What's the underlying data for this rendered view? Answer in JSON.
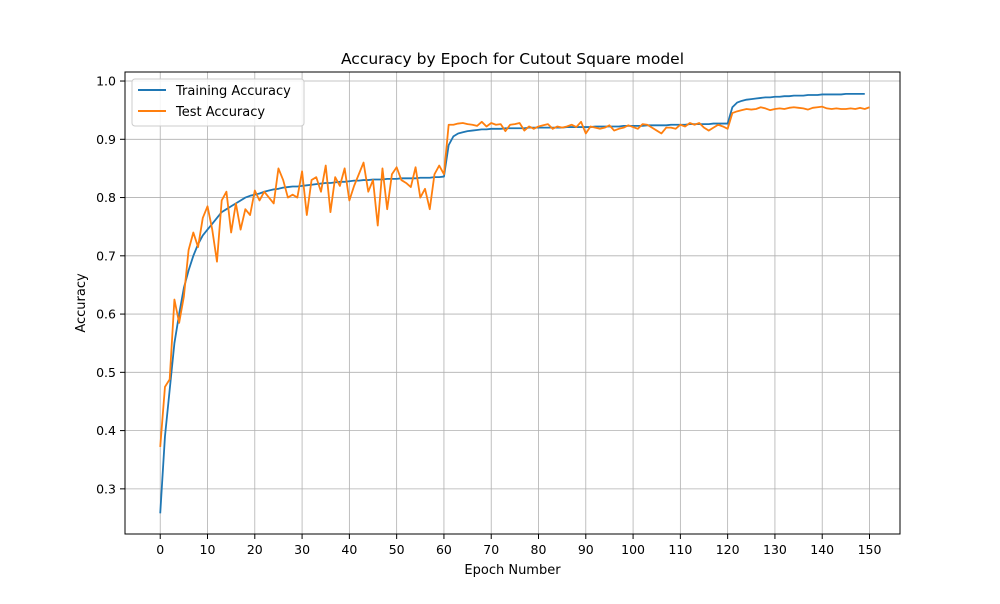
{
  "chart_data": {
    "type": "line",
    "title": "Accuracy by Epoch for Cutout Square model",
    "xlabel": "Epoch Number",
    "ylabel": "Accuracy",
    "xlim": [
      -7.45,
      156.45
    ],
    "ylim": [
      0.2225,
      1.0155
    ],
    "xticks": [
      0,
      10,
      20,
      30,
      40,
      50,
      60,
      70,
      80,
      90,
      100,
      110,
      120,
      130,
      140,
      150
    ],
    "yticks": [
      0.3,
      0.4,
      0.5,
      0.6,
      0.7,
      0.8,
      0.9,
      1.0
    ],
    "xtick_labels": [
      "0",
      "10",
      "20",
      "30",
      "40",
      "50",
      "60",
      "70",
      "80",
      "90",
      "100",
      "110",
      "120",
      "130",
      "140",
      "150"
    ],
    "ytick_labels": [
      "0.3",
      "0.4",
      "0.5",
      "0.6",
      "0.7",
      "0.8",
      "0.9",
      "1.0"
    ],
    "grid": true,
    "legend_position": "upper-left",
    "series": [
      {
        "name": "Training Accuracy",
        "color": "#1f77b4",
        "values": [
          0.258,
          0.39,
          0.47,
          0.55,
          0.6,
          0.645,
          0.675,
          0.7,
          0.72,
          0.735,
          0.745,
          0.755,
          0.765,
          0.775,
          0.78,
          0.785,
          0.79,
          0.795,
          0.8,
          0.803,
          0.805,
          0.807,
          0.81,
          0.812,
          0.814,
          0.815,
          0.817,
          0.818,
          0.819,
          0.819,
          0.82,
          0.821,
          0.822,
          0.823,
          0.824,
          0.825,
          0.825,
          0.826,
          0.827,
          0.827,
          0.828,
          0.829,
          0.829,
          0.83,
          0.83,
          0.831,
          0.831,
          0.831,
          0.832,
          0.832,
          0.832,
          0.833,
          0.833,
          0.833,
          0.833,
          0.834,
          0.834,
          0.834,
          0.835,
          0.835,
          0.836,
          0.89,
          0.905,
          0.91,
          0.912,
          0.914,
          0.915,
          0.916,
          0.917,
          0.917,
          0.918,
          0.918,
          0.918,
          0.919,
          0.919,
          0.919,
          0.919,
          0.919,
          0.92,
          0.92,
          0.92,
          0.92,
          0.92,
          0.92,
          0.92,
          0.92,
          0.921,
          0.921,
          0.921,
          0.921,
          0.921,
          0.921,
          0.922,
          0.922,
          0.922,
          0.922,
          0.922,
          0.922,
          0.923,
          0.923,
          0.923,
          0.923,
          0.923,
          0.924,
          0.924,
          0.924,
          0.924,
          0.924,
          0.925,
          0.925,
          0.925,
          0.925,
          0.926,
          0.926,
          0.926,
          0.926,
          0.926,
          0.927,
          0.927,
          0.927,
          0.927,
          0.955,
          0.963,
          0.966,
          0.968,
          0.969,
          0.97,
          0.971,
          0.972,
          0.972,
          0.973,
          0.973,
          0.974,
          0.974,
          0.975,
          0.975,
          0.975,
          0.976,
          0.976,
          0.976,
          0.977,
          0.977,
          0.977,
          0.977,
          0.977,
          0.978,
          0.978,
          0.978,
          0.978,
          0.978
        ]
      },
      {
        "name": "Test Accuracy",
        "color": "#ff7f0e",
        "values": [
          0.372,
          0.475,
          0.488,
          0.625,
          0.585,
          0.63,
          0.71,
          0.74,
          0.715,
          0.765,
          0.785,
          0.745,
          0.69,
          0.795,
          0.81,
          0.74,
          0.79,
          0.745,
          0.78,
          0.77,
          0.812,
          0.795,
          0.81,
          0.8,
          0.79,
          0.85,
          0.83,
          0.8,
          0.805,
          0.8,
          0.845,
          0.77,
          0.83,
          0.835,
          0.81,
          0.855,
          0.775,
          0.835,
          0.82,
          0.85,
          0.795,
          0.82,
          0.84,
          0.86,
          0.81,
          0.83,
          0.752,
          0.85,
          0.78,
          0.84,
          0.852,
          0.83,
          0.825,
          0.818,
          0.852,
          0.8,
          0.815,
          0.78,
          0.84,
          0.855,
          0.84,
          0.925,
          0.925,
          0.927,
          0.928,
          0.926,
          0.925,
          0.923,
          0.93,
          0.922,
          0.928,
          0.925,
          0.926,
          0.914,
          0.925,
          0.926,
          0.928,
          0.915,
          0.922,
          0.918,
          0.922,
          0.924,
          0.926,
          0.918,
          0.922,
          0.92,
          0.922,
          0.925,
          0.921,
          0.93,
          0.91,
          0.922,
          0.92,
          0.918,
          0.92,
          0.924,
          0.915,
          0.918,
          0.92,
          0.924,
          0.921,
          0.918,
          0.926,
          0.925,
          0.92,
          0.915,
          0.91,
          0.92,
          0.92,
          0.918,
          0.925,
          0.922,
          0.928,
          0.925,
          0.928,
          0.92,
          0.915,
          0.92,
          0.925,
          0.922,
          0.918,
          0.945,
          0.948,
          0.95,
          0.952,
          0.951,
          0.952,
          0.955,
          0.953,
          0.95,
          0.952,
          0.953,
          0.952,
          0.954,
          0.955,
          0.954,
          0.953,
          0.951,
          0.954,
          0.955,
          0.956,
          0.953,
          0.952,
          0.953,
          0.952,
          0.952,
          0.953,
          0.952,
          0.954,
          0.952,
          0.955
        ]
      }
    ]
  }
}
